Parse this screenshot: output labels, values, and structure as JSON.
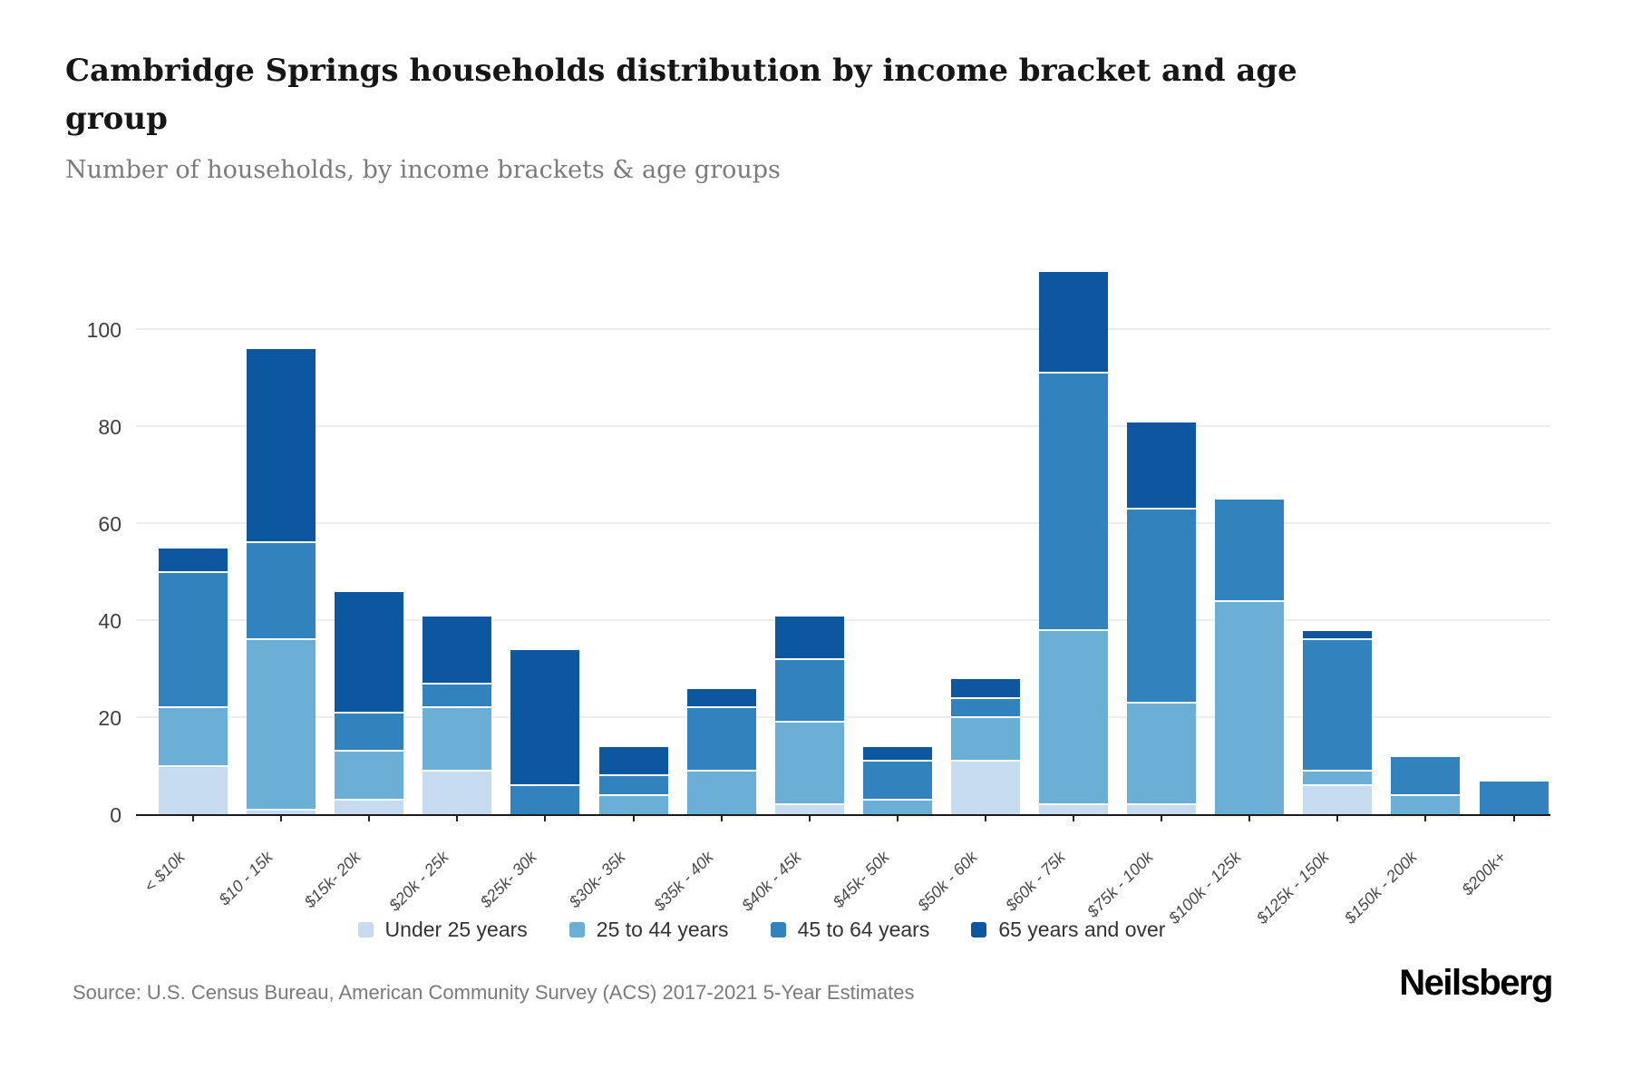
{
  "header": {
    "title": "Cambridge Springs households distribution by income bracket and age group",
    "subtitle": "Number of households, by income brackets & age groups"
  },
  "footer": {
    "source": "Source: U.S. Census Bureau, American Community Survey (ACS) 2017-2021 5-Year Estimates",
    "brand": "Neilsberg"
  },
  "chart_data": {
    "type": "bar",
    "stacked": true,
    "title": "Cambridge Springs households distribution by income bracket and age group",
    "subtitle": "Number of households, by income brackets & age groups",
    "xlabel": "",
    "ylabel": "",
    "ylim": [
      0,
      115
    ],
    "y_ticks": [
      0,
      20,
      40,
      60,
      80,
      100
    ],
    "grid": true,
    "legend_position": "bottom",
    "categories": [
      "< $10k",
      "$10 - 15k",
      "$15k- 20k",
      "$20k - 25k",
      "$25k- 30k",
      "$30k- 35k",
      "$35k - 40k",
      "$40k - 45k",
      "$45k- 50k",
      "$50k - 60k",
      "$60k - 75k",
      "$75k - 100k",
      "$100k - 125k",
      "$125k - 150k",
      "$150k - 200k",
      "$200k+"
    ],
    "series": [
      {
        "name": "Under 25 years",
        "color": "#c6dbef",
        "values": [
          10,
          1,
          3,
          9,
          0,
          0,
          0,
          2,
          0,
          11,
          2,
          2,
          0,
          6,
          0,
          0
        ]
      },
      {
        "name": "25 to 44 years",
        "color": "#6baed6",
        "values": [
          12,
          35,
          10,
          13,
          0,
          4,
          9,
          17,
          3,
          9,
          36,
          21,
          44,
          3,
          4,
          0
        ]
      },
      {
        "name": "45 to 64 years",
        "color": "#3182bd",
        "values": [
          28,
          20,
          8,
          5,
          6,
          4,
          13,
          13,
          8,
          4,
          53,
          40,
          21,
          27,
          8,
          7
        ]
      },
      {
        "name": "65 years and over",
        "color": "#0d57a1",
        "values": [
          5,
          40,
          25,
          14,
          28,
          6,
          4,
          9,
          3,
          4,
          21,
          18,
          0,
          2,
          0,
          0
        ]
      }
    ],
    "totals": [
      55,
      96,
      46,
      41,
      34,
      14,
      26,
      41,
      14,
      28,
      112,
      81,
      65,
      38,
      12,
      7
    ]
  }
}
